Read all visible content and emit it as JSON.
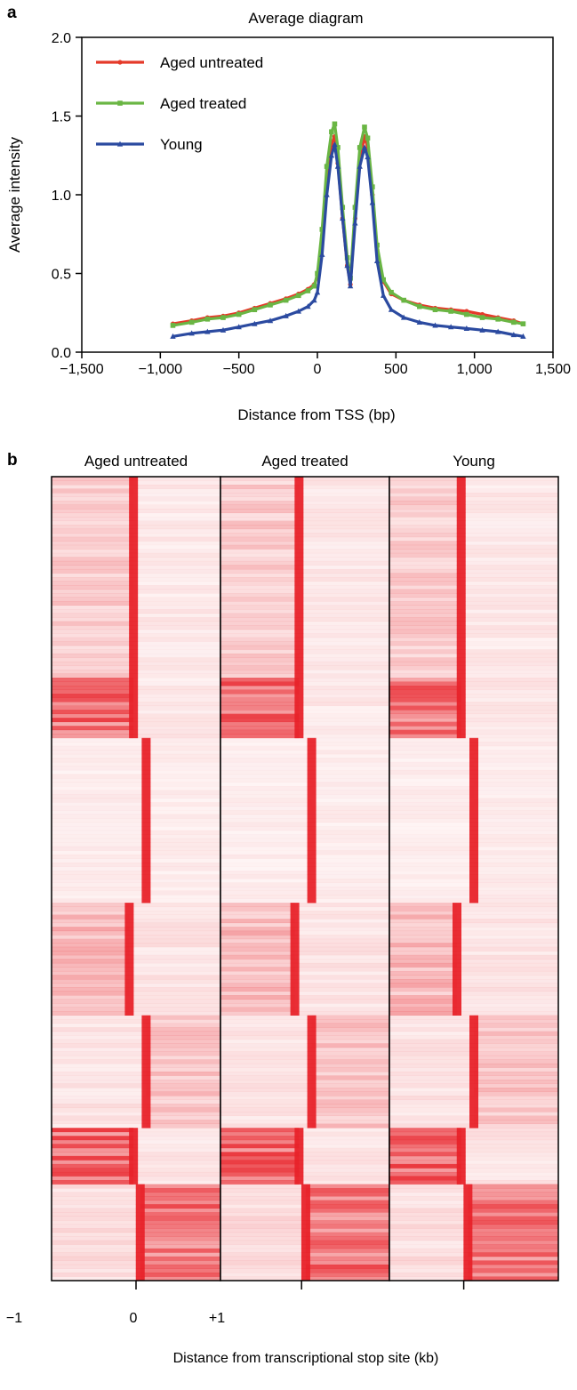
{
  "panel_a": {
    "letter": "a",
    "chart_data": {
      "type": "line",
      "title": "Average diagram",
      "xlabel": "Distance from TSS (bp)",
      "ylabel": "Average intensity",
      "xlim": [
        -1500,
        1500
      ],
      "ylim": [
        0,
        2.0
      ],
      "x_ticks": [
        -1500,
        -1000,
        -500,
        0,
        500,
        1000,
        1500
      ],
      "x_tick_labels": [
        "−1,500",
        "−1,000",
        "−500",
        "0",
        "500",
        "1,000",
        "1,500"
      ],
      "y_ticks": [
        0,
        0.5,
        1.0,
        1.5,
        2.0
      ],
      "y_tick_labels": [
        "0.0",
        "0.5",
        "1.0",
        "1.5",
        "2.0"
      ],
      "grid": false,
      "legend_position": "top-left",
      "x": [
        -920,
        -800,
        -700,
        -600,
        -500,
        -400,
        -300,
        -200,
        -120,
        -60,
        -20,
        0,
        30,
        60,
        90,
        110,
        130,
        160,
        190,
        210,
        240,
        270,
        300,
        320,
        350,
        380,
        420,
        470,
        550,
        650,
        750,
        850,
        950,
        1050,
        1150,
        1250,
        1310
      ],
      "series": [
        {
          "name": "Aged untreated",
          "color": "#e53a2a",
          "marker": "circle",
          "values": [
            0.18,
            0.2,
            0.22,
            0.23,
            0.25,
            0.28,
            0.31,
            0.34,
            0.37,
            0.4,
            0.43,
            0.48,
            0.72,
            1.1,
            1.32,
            1.37,
            1.2,
            0.85,
            0.55,
            0.43,
            0.85,
            1.22,
            1.37,
            1.3,
            1.0,
            0.65,
            0.45,
            0.37,
            0.33,
            0.3,
            0.28,
            0.27,
            0.26,
            0.24,
            0.22,
            0.2,
            0.18
          ]
        },
        {
          "name": "Aged treated",
          "color": "#6ab644",
          "marker": "square",
          "values": [
            0.17,
            0.19,
            0.21,
            0.22,
            0.24,
            0.27,
            0.3,
            0.33,
            0.36,
            0.39,
            0.42,
            0.5,
            0.78,
            1.18,
            1.4,
            1.45,
            1.3,
            0.92,
            0.6,
            0.47,
            0.92,
            1.3,
            1.43,
            1.36,
            1.05,
            0.68,
            0.46,
            0.38,
            0.33,
            0.29,
            0.27,
            0.26,
            0.24,
            0.22,
            0.21,
            0.19,
            0.18
          ]
        },
        {
          "name": "Young",
          "color": "#2b4aa0",
          "marker": "triangle",
          "values": [
            0.1,
            0.12,
            0.13,
            0.14,
            0.16,
            0.18,
            0.2,
            0.23,
            0.26,
            0.29,
            0.33,
            0.38,
            0.62,
            1.0,
            1.25,
            1.32,
            1.18,
            0.85,
            0.55,
            0.42,
            0.82,
            1.18,
            1.3,
            1.24,
            0.95,
            0.58,
            0.36,
            0.27,
            0.22,
            0.19,
            0.17,
            0.16,
            0.15,
            0.14,
            0.13,
            0.11,
            0.1
          ]
        }
      ]
    }
  },
  "panel_b": {
    "letter": "b",
    "chart_data": {
      "type": "heatmap",
      "xlabel": "Distance from transcriptional stop site (kb)",
      "x_tick_labels": [
        "−1",
        "0",
        "+1"
      ],
      "colormap": {
        "low": "#ffffff",
        "high": "#e8232a"
      },
      "panels": [
        "Aged untreated",
        "Aged treated",
        "Young"
      ],
      "peak_offsets": [
        0,
        -0.04,
        -0.12
      ],
      "x_range_kb": [
        -1,
        1
      ],
      "clusters": [
        {
          "rows": 0.25,
          "peak_kb": -0.03,
          "left_signal": 0.22,
          "right_signal": 0.1
        },
        {
          "rows": 0.075,
          "peak_kb": -0.03,
          "left_signal": 0.62,
          "right_signal": 0.1
        },
        {
          "rows": 0.205,
          "peak_kb": 0.12,
          "left_signal": 0.08,
          "right_signal": 0.08
        },
        {
          "rows": 0.14,
          "peak_kb": -0.08,
          "left_signal": 0.3,
          "right_signal": 0.12
        },
        {
          "rows": 0.14,
          "peak_kb": 0.12,
          "left_signal": 0.12,
          "right_signal": 0.25
        },
        {
          "rows": 0.07,
          "peak_kb": -0.03,
          "left_signal": 0.65,
          "right_signal": 0.12
        },
        {
          "rows": 0.12,
          "peak_kb": 0.05,
          "left_signal": 0.15,
          "right_signal": 0.62
        }
      ]
    }
  },
  "colors": {
    "untreated": "#e53a2a",
    "treated": "#6ab644",
    "young": "#2b4aa0"
  }
}
